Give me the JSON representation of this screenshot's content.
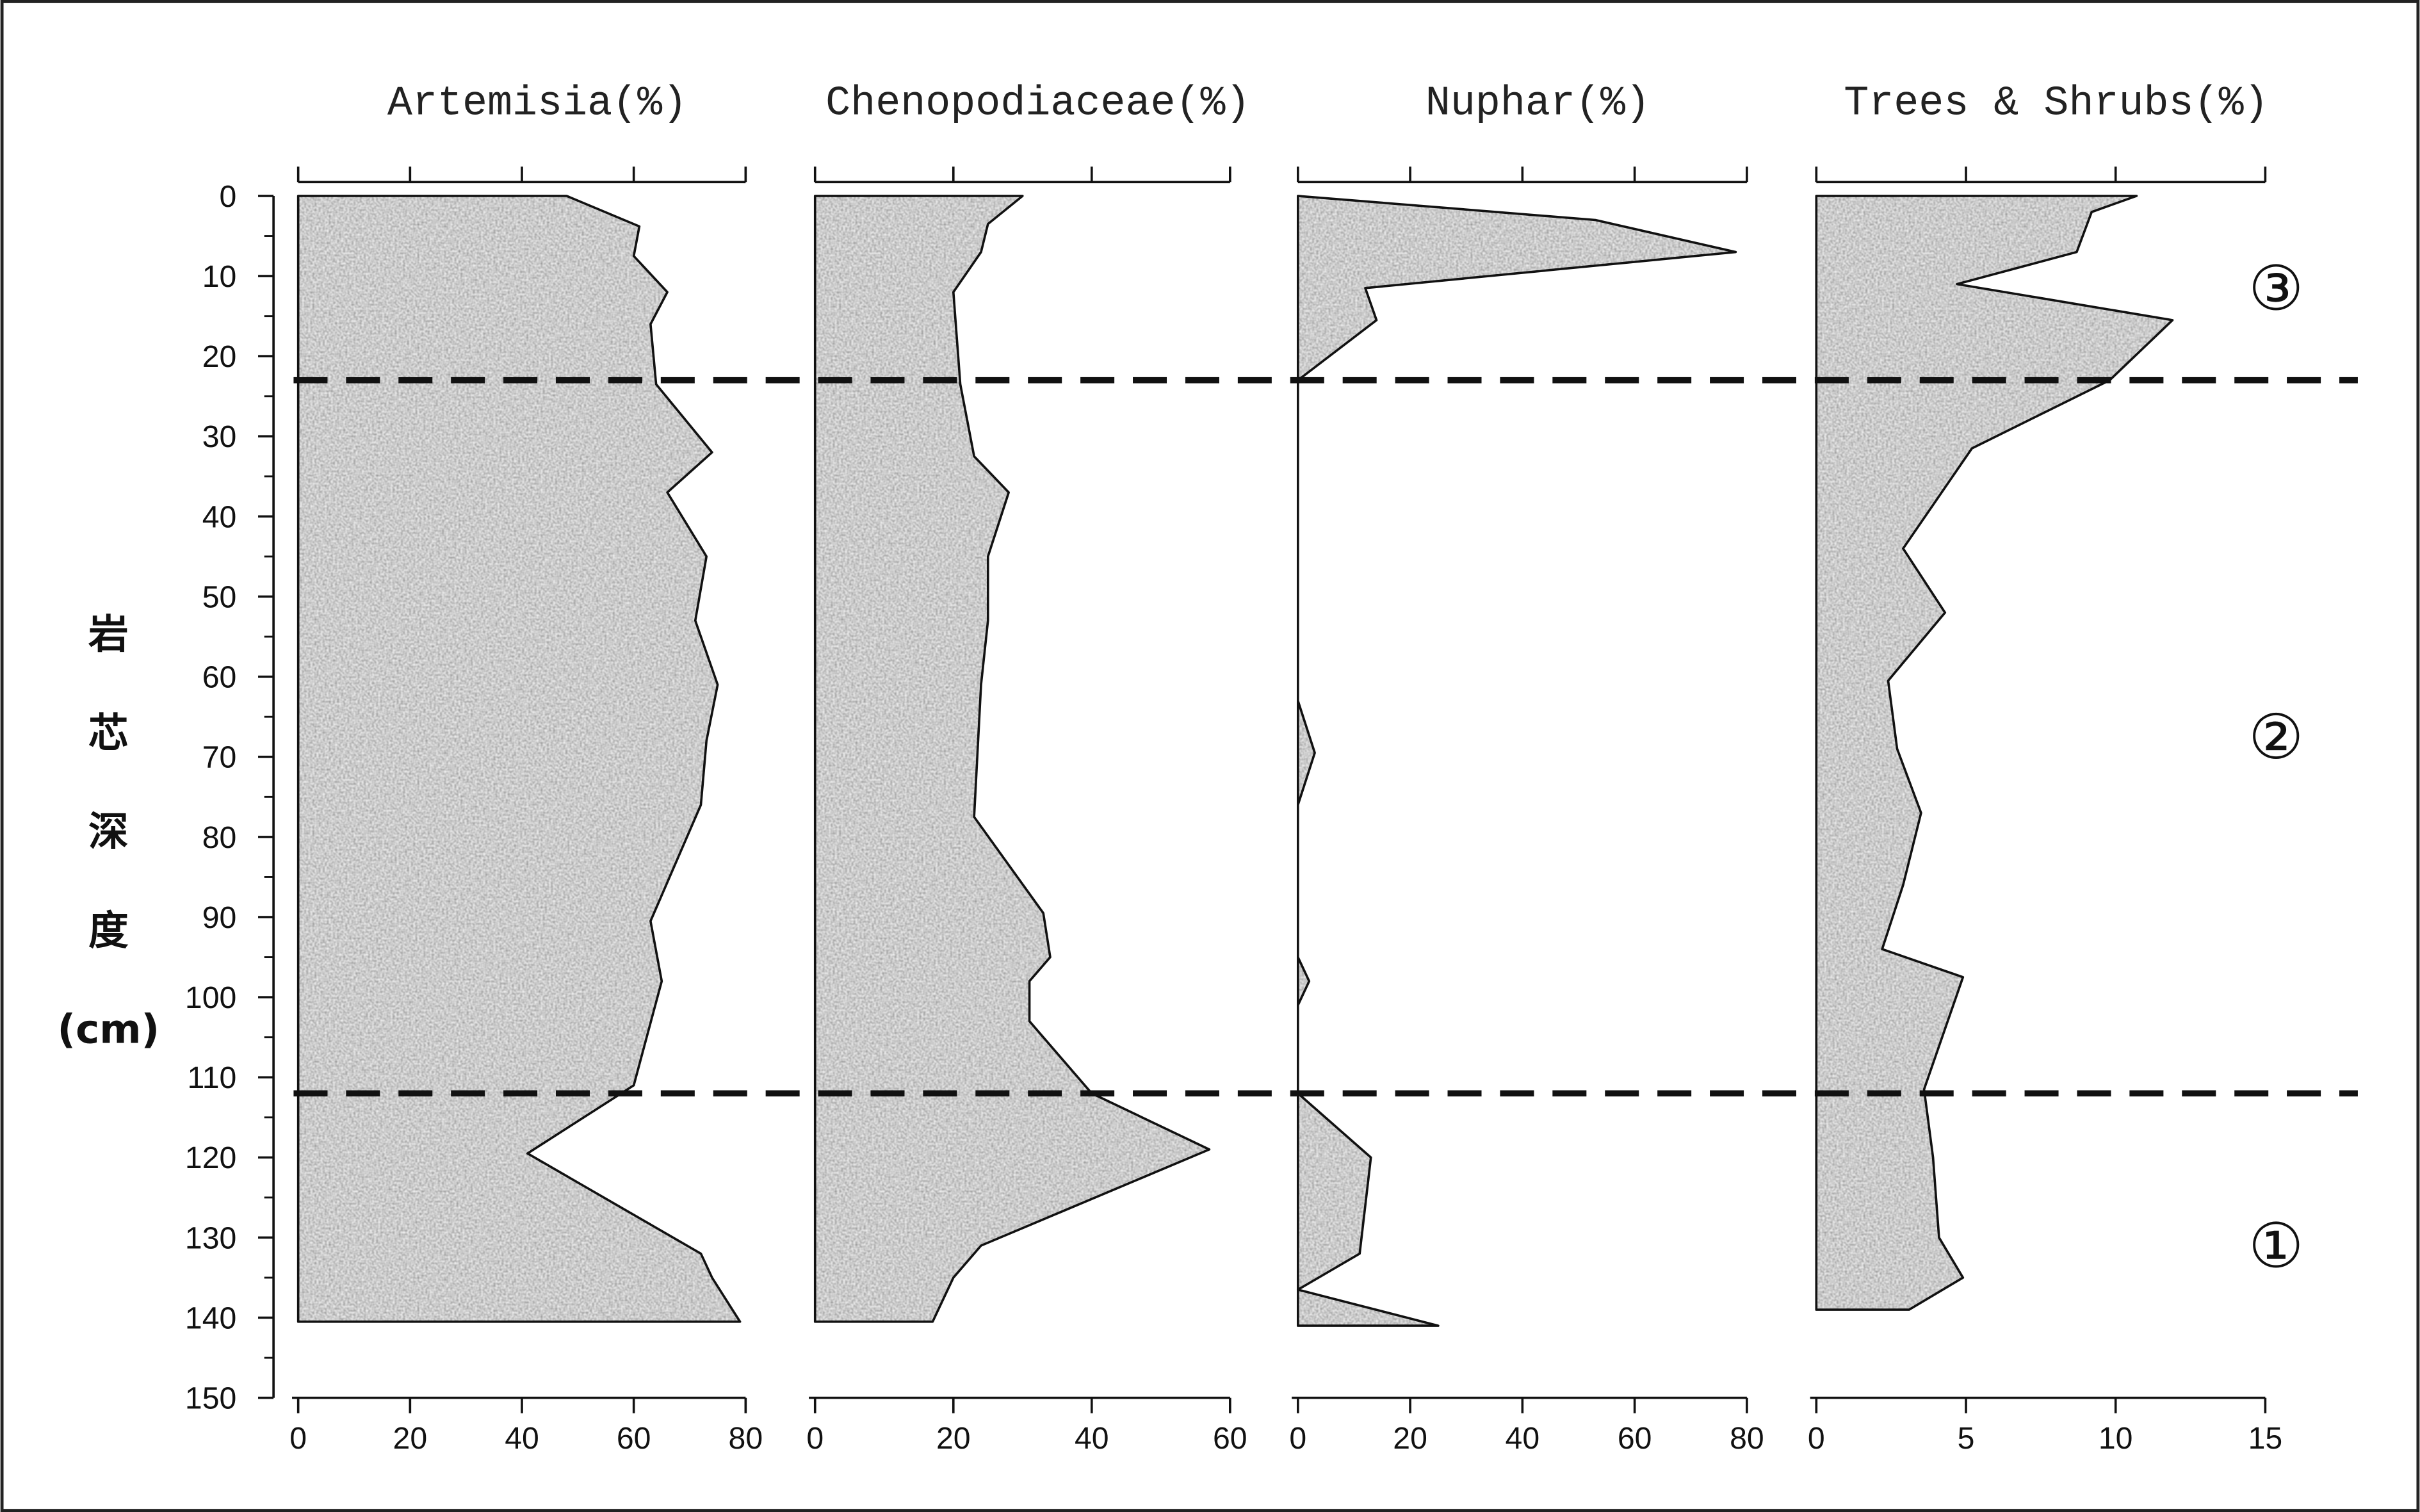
{
  "chart_data": [
    {
      "type": "area",
      "title": "Artemisia(%)",
      "color": "#9a9a9a",
      "xlim": [
        0,
        80
      ],
      "xticks": [
        0,
        20,
        40,
        60,
        80
      ],
      "ylim": [
        0,
        150
      ],
      "yticks": [
        0,
        10,
        20,
        30,
        40,
        50,
        60,
        70,
        80,
        90,
        100,
        110,
        120,
        130,
        140,
        150
      ],
      "ylabel": "岩芯深度(cm)",
      "zone_boundaries": [
        23,
        112
      ],
      "zone_labels": [
        "③",
        "②",
        "①"
      ],
      "depth": [
        0,
        3.8,
        7.5,
        12,
        16,
        23.5,
        32,
        37,
        45,
        53,
        61,
        68,
        76,
        90.5,
        98,
        111,
        119.5,
        132,
        135,
        140.5
      ],
      "values": [
        48,
        61,
        60,
        66,
        63,
        64,
        74,
        66,
        73,
        71,
        75,
        73,
        72,
        63,
        65,
        60,
        41,
        72,
        74,
        79
      ]
    },
    {
      "type": "area",
      "title": "Chenopodiaceae(%)",
      "color": "#9a9a9a",
      "xlim": [
        0,
        60
      ],
      "xticks": [
        0,
        20,
        40,
        60
      ],
      "depth": [
        0,
        3.5,
        7,
        12,
        23.5,
        32.5,
        37,
        45,
        53,
        61,
        77.5,
        89.5,
        95,
        98,
        103,
        112,
        119,
        131,
        135,
        140.5
      ],
      "values": [
        30,
        25,
        24,
        20,
        21,
        23,
        28,
        25,
        25,
        24,
        23,
        33,
        34,
        31,
        31,
        40,
        57,
        24,
        20,
        17
      ]
    },
    {
      "type": "area",
      "title": "Nuphar(%)",
      "color": "#9a9a9a",
      "xlim": [
        0,
        80
      ],
      "xticks": [
        0,
        20,
        40,
        60,
        80
      ],
      "depth": [
        0,
        3,
        7,
        11.5,
        15.5,
        23,
        63,
        69.5,
        76,
        95,
        98,
        101,
        112,
        120,
        132,
        136.5,
        141
      ],
      "values": [
        0,
        53,
        78,
        12,
        14,
        0,
        0,
        3,
        0,
        0,
        2,
        0,
        0,
        13,
        11,
        0,
        25
      ]
    },
    {
      "type": "area",
      "title": "Trees & Shrubs(%)",
      "color": "#9a9a9a",
      "xlim": [
        0,
        15
      ],
      "xticks": [
        0,
        5,
        10,
        15
      ],
      "depth": [
        0,
        2,
        7,
        11,
        15.5,
        23,
        31.5,
        44,
        52,
        60.5,
        69,
        77,
        86,
        94,
        97.5,
        111.5,
        120,
        130,
        135,
        139
      ],
      "values": [
        10.7,
        9.2,
        8.7,
        4.7,
        11.9,
        9.8,
        5.2,
        2.9,
        4.3,
        2.4,
        2.7,
        3.5,
        2.9,
        2.2,
        4.9,
        3.6,
        3.9,
        4.1,
        4.9,
        3.1
      ]
    }
  ]
}
